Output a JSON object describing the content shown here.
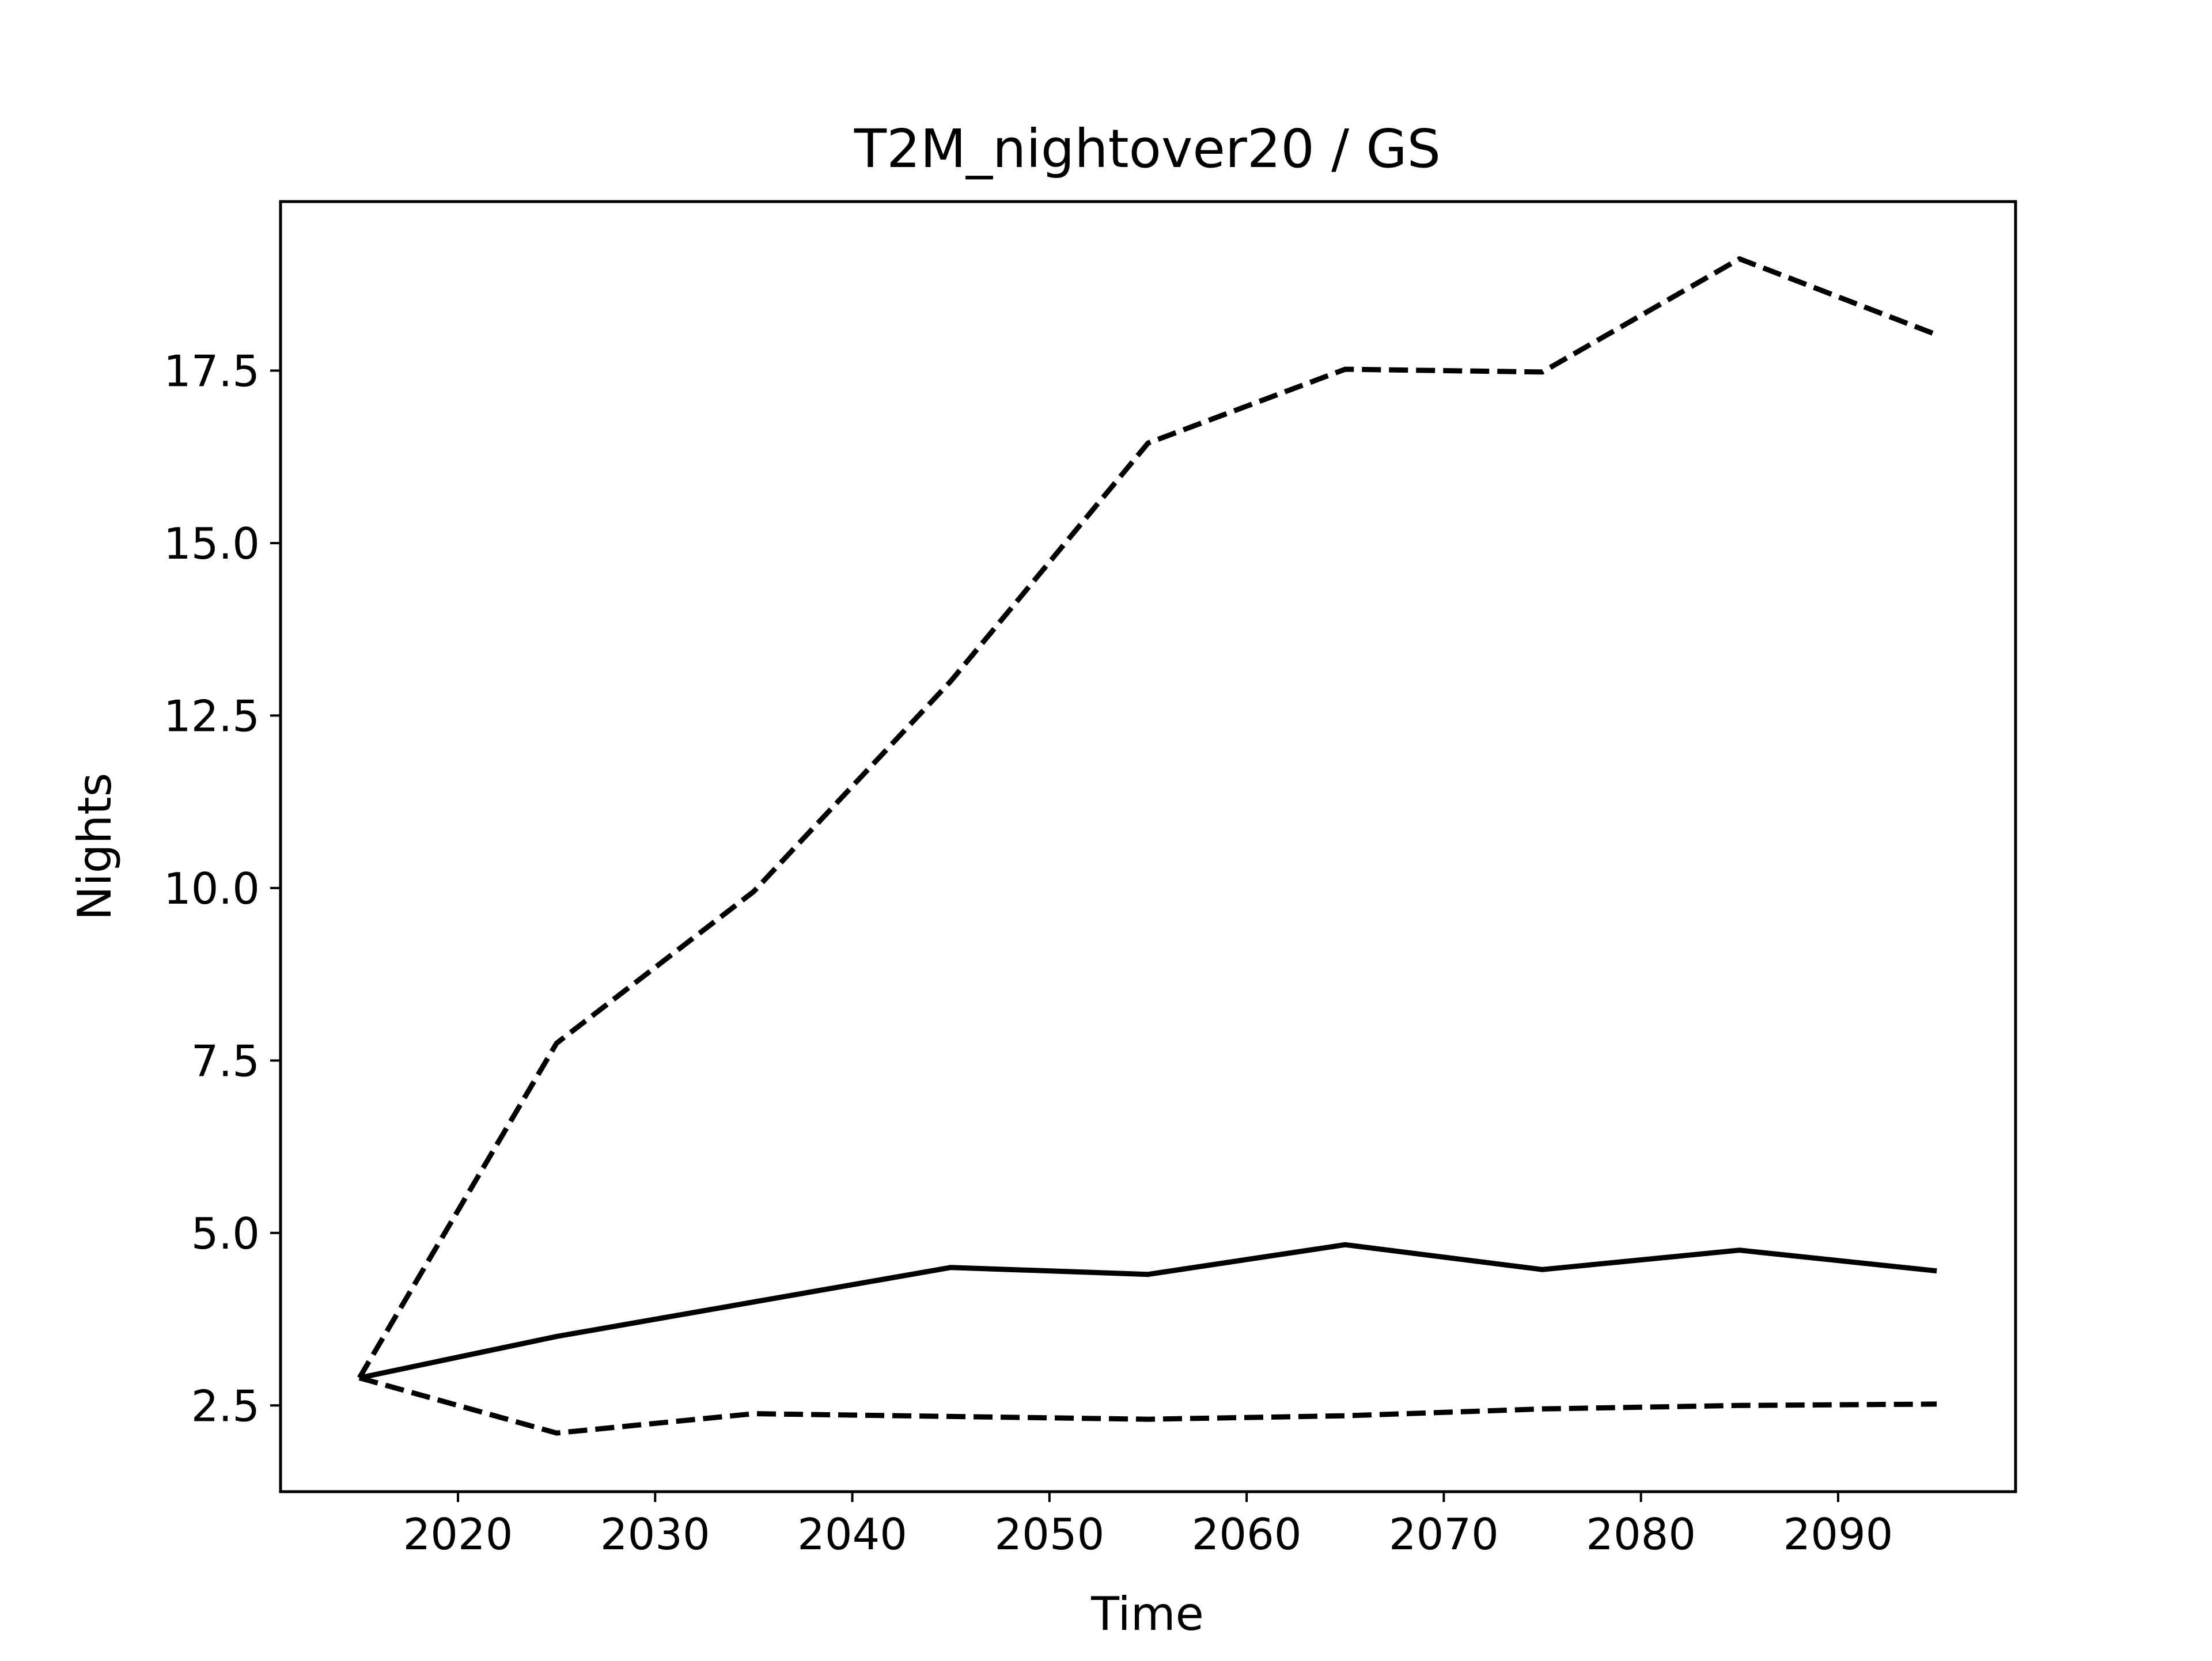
{
  "chart_data": {
    "type": "line",
    "title": "T2M_nightover20 / GS",
    "xlabel": "Time",
    "ylabel": "Nights",
    "x": [
      2015,
      2025,
      2035,
      2045,
      2055,
      2065,
      2075,
      2085,
      2095
    ],
    "xlim": [
      2011,
      2099
    ],
    "ylim": [
      1.25,
      19.95
    ],
    "xticks": [
      2020,
      2030,
      2040,
      2050,
      2060,
      2070,
      2080,
      2090
    ],
    "yticks": [
      2.5,
      5.0,
      7.5,
      10.0,
      12.5,
      15.0,
      17.5
    ],
    "ytick_labels": [
      "2.5",
      "5.0",
      "7.5",
      "10.0",
      "12.5",
      "15.0",
      "17.5"
    ],
    "grid": false,
    "series": [
      {
        "style": "dashed",
        "color": "#000000",
        "values": [
          2.9,
          7.75,
          9.95,
          13.0,
          16.45,
          17.52,
          17.48,
          19.12,
          18.02
        ]
      },
      {
        "style": "solid",
        "color": "#000000",
        "values": [
          2.9,
          3.5,
          4.0,
          4.5,
          4.4,
          4.83,
          4.47,
          4.75,
          4.45
        ]
      },
      {
        "style": "dashed",
        "color": "#000000",
        "values": [
          2.9,
          2.1,
          2.38,
          2.34,
          2.3,
          2.35,
          2.45,
          2.5,
          2.52
        ]
      }
    ]
  }
}
